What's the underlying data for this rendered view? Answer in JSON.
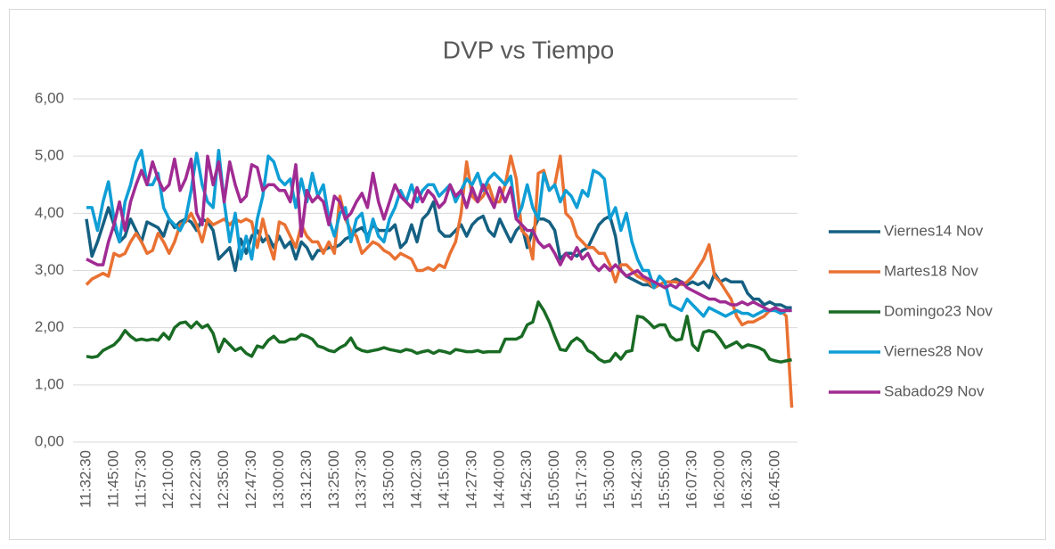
{
  "chart_data": {
    "type": "line",
    "title": "DVP vs Tiempo",
    "categories": [
      "11:32:30",
      null,
      null,
      null,
      null,
      "11:45:00",
      null,
      null,
      null,
      null,
      "11:57:30",
      null,
      null,
      null,
      null,
      "12:10:00",
      null,
      null,
      null,
      null,
      "12:22:30",
      null,
      null,
      null,
      null,
      "12:35:00",
      null,
      null,
      null,
      null,
      "12:47:30",
      null,
      null,
      null,
      null,
      "13:00:00",
      null,
      null,
      null,
      null,
      "13:12:30",
      null,
      null,
      null,
      null,
      "13:25:00",
      null,
      null,
      null,
      null,
      "13:37:30",
      null,
      null,
      null,
      null,
      "13:50:00",
      null,
      null,
      null,
      null,
      "14:02:30",
      null,
      null,
      null,
      null,
      "14:15:00",
      null,
      null,
      null,
      null,
      "14:27:30",
      null,
      null,
      null,
      null,
      "14:40:00",
      null,
      null,
      null,
      null,
      "14:52:30",
      null,
      null,
      null,
      null,
      "15:05:00",
      null,
      null,
      null,
      null,
      "15:17:30",
      null,
      null,
      null,
      null,
      "15:30:00",
      null,
      null,
      null,
      null,
      "15:42:30",
      null,
      null,
      null,
      null,
      "15:55:00",
      null,
      null,
      null,
      null,
      "16:07:30",
      null,
      null,
      null,
      null,
      "16:20:00",
      null,
      null,
      null,
      null,
      "16:32:30",
      null,
      null,
      null,
      null,
      "16:45:00",
      null,
      null,
      null
    ],
    "series": [
      {
        "name": "Viernes14 Nov",
        "color": "#156082",
        "values": [
          3.9,
          3.25,
          3.5,
          3.8,
          4.1,
          3.8,
          3.5,
          3.6,
          3.9,
          3.7,
          3.5,
          3.85,
          3.8,
          3.75,
          3.6,
          3.9,
          3.75,
          3.85,
          3.9,
          3.85,
          3.7,
          3.9,
          3.85,
          3.7,
          3.2,
          3.3,
          3.4,
          3.0,
          3.55,
          3.3,
          3.6,
          3.7,
          3.5,
          3.6,
          3.4,
          3.6,
          3.4,
          3.5,
          3.2,
          3.5,
          3.4,
          3.2,
          3.35,
          3.35,
          3.4,
          3.4,
          3.45,
          3.55,
          3.6,
          3.7,
          3.75,
          3.6,
          3.8,
          3.7,
          3.7,
          3.7,
          3.8,
          3.4,
          3.5,
          3.8,
          3.5,
          3.9,
          4.0,
          4.2,
          3.7,
          3.6,
          3.6,
          3.7,
          3.8,
          3.6,
          3.8,
          3.9,
          3.95,
          3.7,
          3.6,
          3.9,
          3.7,
          3.5,
          3.7,
          3.8,
          3.4,
          3.7,
          3.9,
          3.9,
          3.85,
          3.7,
          3.2,
          3.3,
          3.3,
          3.25,
          3.35,
          3.4,
          3.6,
          3.8,
          3.9,
          3.95,
          3.6,
          3.0,
          2.9,
          2.85,
          2.8,
          2.75,
          2.75,
          2.7,
          2.75,
          2.8,
          2.8,
          2.85,
          2.8,
          2.75,
          2.8,
          2.75,
          2.8,
          2.7,
          2.95,
          2.8,
          2.85,
          2.8,
          2.8,
          2.8,
          2.6,
          2.5,
          2.5,
          2.4,
          2.45,
          2.4,
          2.4,
          2.35,
          2.35
        ]
      },
      {
        "name": "Martes18 Nov",
        "color": "#e97132",
        "values": [
          2.75,
          2.85,
          2.9,
          2.95,
          2.9,
          3.3,
          3.25,
          3.3,
          3.5,
          3.65,
          3.5,
          3.3,
          3.35,
          3.65,
          3.5,
          3.3,
          3.5,
          3.8,
          3.85,
          4.0,
          3.8,
          3.5,
          3.9,
          3.8,
          3.85,
          3.9,
          3.8,
          3.9,
          3.85,
          3.9,
          3.85,
          3.4,
          3.9,
          3.5,
          3.2,
          3.85,
          3.8,
          3.6,
          3.4,
          3.8,
          3.6,
          3.5,
          3.5,
          3.3,
          3.5,
          3.3,
          4.3,
          3.9,
          3.7,
          3.6,
          3.3,
          3.4,
          3.5,
          3.45,
          3.35,
          3.3,
          3.2,
          3.3,
          3.25,
          3.2,
          3.0,
          3.0,
          3.05,
          3.0,
          3.1,
          3.05,
          3.3,
          3.5,
          4.0,
          4.9,
          4.3,
          4.2,
          4.3,
          4.5,
          4.2,
          4.2,
          4.5,
          5.0,
          4.6,
          3.7,
          3.6,
          3.2,
          4.7,
          4.75,
          4.4,
          4.5,
          5.0,
          4.0,
          3.9,
          3.6,
          3.5,
          3.4,
          3.4,
          3.3,
          3.3,
          3.1,
          2.8,
          3.1,
          3.1,
          3.0,
          2.9,
          2.85,
          2.8,
          2.7,
          2.75,
          2.8,
          2.8,
          2.8,
          2.75,
          2.8,
          2.9,
          3.05,
          3.2,
          3.45,
          2.9,
          2.8,
          2.65,
          2.5,
          2.2,
          2.05,
          2.1,
          2.1,
          2.15,
          2.2,
          2.3,
          2.3,
          2.3,
          2.2,
          0.6
        ]
      },
      {
        "name": "Domingo23 Nov",
        "color": "#196b24",
        "values": [
          1.5,
          1.48,
          1.5,
          1.6,
          1.65,
          1.7,
          1.8,
          1.95,
          1.85,
          1.78,
          1.8,
          1.78,
          1.8,
          1.78,
          1.9,
          1.8,
          2.0,
          2.08,
          2.1,
          2.0,
          2.1,
          2.0,
          2.05,
          1.9,
          1.58,
          1.8,
          1.7,
          1.6,
          1.65,
          1.55,
          1.5,
          1.68,
          1.65,
          1.78,
          1.85,
          1.75,
          1.75,
          1.8,
          1.8,
          1.88,
          1.85,
          1.8,
          1.68,
          1.65,
          1.6,
          1.58,
          1.65,
          1.7,
          1.82,
          1.65,
          1.6,
          1.58,
          1.6,
          1.62,
          1.65,
          1.62,
          1.6,
          1.58,
          1.62,
          1.6,
          1.55,
          1.58,
          1.6,
          1.55,
          1.6,
          1.58,
          1.55,
          1.62,
          1.6,
          1.58,
          1.58,
          1.6,
          1.57,
          1.58,
          1.58,
          1.58,
          1.8,
          1.8,
          1.8,
          1.85,
          2.05,
          2.1,
          2.45,
          2.3,
          2.1,
          1.85,
          1.62,
          1.6,
          1.75,
          1.82,
          1.75,
          1.6,
          1.55,
          1.45,
          1.4,
          1.42,
          1.55,
          1.45,
          1.58,
          1.6,
          2.2,
          2.18,
          2.1,
          2.0,
          2.05,
          2.05,
          1.85,
          1.78,
          1.8,
          2.2,
          1.7,
          1.6,
          1.92,
          1.95,
          1.92,
          1.8,
          1.65,
          1.7,
          1.75,
          1.65,
          1.7,
          1.68,
          1.65,
          1.6,
          1.45,
          1.42,
          1.4,
          1.42,
          1.44
        ]
      },
      {
        "name": "Viernes28 Nov",
        "color": "#0f9ed5",
        "values": [
          4.1,
          4.1,
          3.7,
          4.2,
          4.55,
          3.9,
          3.5,
          4.2,
          4.5,
          4.9,
          5.1,
          4.5,
          4.5,
          4.7,
          4.1,
          3.9,
          3.8,
          3.7,
          3.9,
          4.4,
          5.05,
          4.5,
          4.2,
          4.1,
          5.1,
          4.2,
          3.5,
          4.0,
          3.2,
          3.6,
          3.2,
          3.9,
          4.3,
          5.0,
          4.9,
          4.6,
          4.5,
          4.6,
          4.1,
          4.6,
          4.2,
          4.7,
          4.3,
          4.5,
          3.9,
          3.6,
          4.0,
          4.1,
          3.5,
          3.9,
          4.0,
          3.5,
          3.9,
          3.6,
          3.5,
          3.9,
          4.1,
          4.4,
          4.2,
          4.5,
          4.2,
          4.4,
          4.5,
          4.5,
          4.3,
          4.4,
          4.5,
          4.2,
          4.4,
          4.6,
          4.5,
          4.7,
          4.4,
          4.6,
          4.7,
          4.6,
          4.5,
          4.65,
          3.9,
          4.1,
          4.5,
          4.1,
          3.9,
          4.7,
          4.4,
          4.5,
          4.2,
          4.4,
          4.3,
          4.1,
          4.4,
          4.3,
          4.75,
          4.7,
          4.6,
          3.9,
          4.1,
          3.7,
          4.0,
          3.5,
          3.2,
          3.0,
          3.0,
          2.7,
          2.9,
          2.8,
          2.4,
          2.35,
          2.3,
          2.5,
          2.4,
          2.3,
          2.2,
          2.35,
          2.3,
          2.25,
          2.2,
          2.25,
          2.3,
          2.25,
          2.25,
          2.2,
          2.25,
          2.3,
          2.3,
          2.3,
          2.25,
          2.3,
          2.3
        ]
      },
      {
        "name": "Sabado29 Nov",
        "color": "#a02b93",
        "values": [
          3.2,
          3.15,
          3.1,
          3.1,
          3.5,
          3.8,
          4.2,
          3.7,
          4.2,
          4.5,
          4.75,
          4.5,
          4.9,
          4.6,
          4.4,
          4.5,
          4.95,
          4.4,
          4.6,
          4.95,
          4.0,
          3.8,
          5.0,
          4.5,
          4.9,
          4.2,
          4.9,
          4.5,
          4.2,
          4.3,
          4.85,
          4.8,
          4.4,
          4.5,
          4.5,
          4.4,
          4.4,
          4.2,
          4.85,
          3.6,
          4.4,
          4.2,
          4.3,
          4.2,
          3.8,
          4.3,
          4.2,
          3.9,
          4.0,
          4.2,
          4.35,
          4.1,
          4.7,
          4.2,
          3.9,
          4.2,
          4.5,
          4.3,
          4.2,
          4.1,
          4.45,
          4.2,
          4.4,
          4.3,
          4.1,
          4.2,
          4.5,
          4.3,
          4.4,
          4.1,
          4.45,
          4.2,
          4.5,
          4.3,
          4.1,
          4.45,
          4.2,
          4.45,
          3.9,
          3.8,
          3.7,
          3.7,
          3.5,
          3.4,
          3.45,
          3.3,
          3.1,
          3.3,
          3.2,
          3.4,
          3.2,
          3.3,
          3.1,
          3.0,
          3.1,
          3.0,
          3.1,
          3.0,
          2.9,
          2.95,
          3.0,
          2.9,
          2.85,
          2.8,
          2.75,
          2.7,
          2.75,
          2.7,
          2.8,
          2.7,
          2.65,
          2.6,
          2.55,
          2.5,
          2.5,
          2.45,
          2.45,
          2.4,
          2.4,
          2.45,
          2.4,
          2.45,
          2.4,
          2.35,
          2.3,
          2.35,
          2.3,
          2.3,
          2.3
        ]
      }
    ],
    "ylim": [
      0,
      6
    ],
    "yticks": [
      {
        "value": 0,
        "label": "0,00"
      },
      {
        "value": 1,
        "label": "1,00"
      },
      {
        "value": 2,
        "label": "2,00"
      },
      {
        "value": 3,
        "label": "3,00"
      },
      {
        "value": 4,
        "label": "4,00"
      },
      {
        "value": 5,
        "label": "5,00"
      },
      {
        "value": 6,
        "label": "6,00"
      }
    ],
    "grid": true,
    "legend": "right"
  }
}
